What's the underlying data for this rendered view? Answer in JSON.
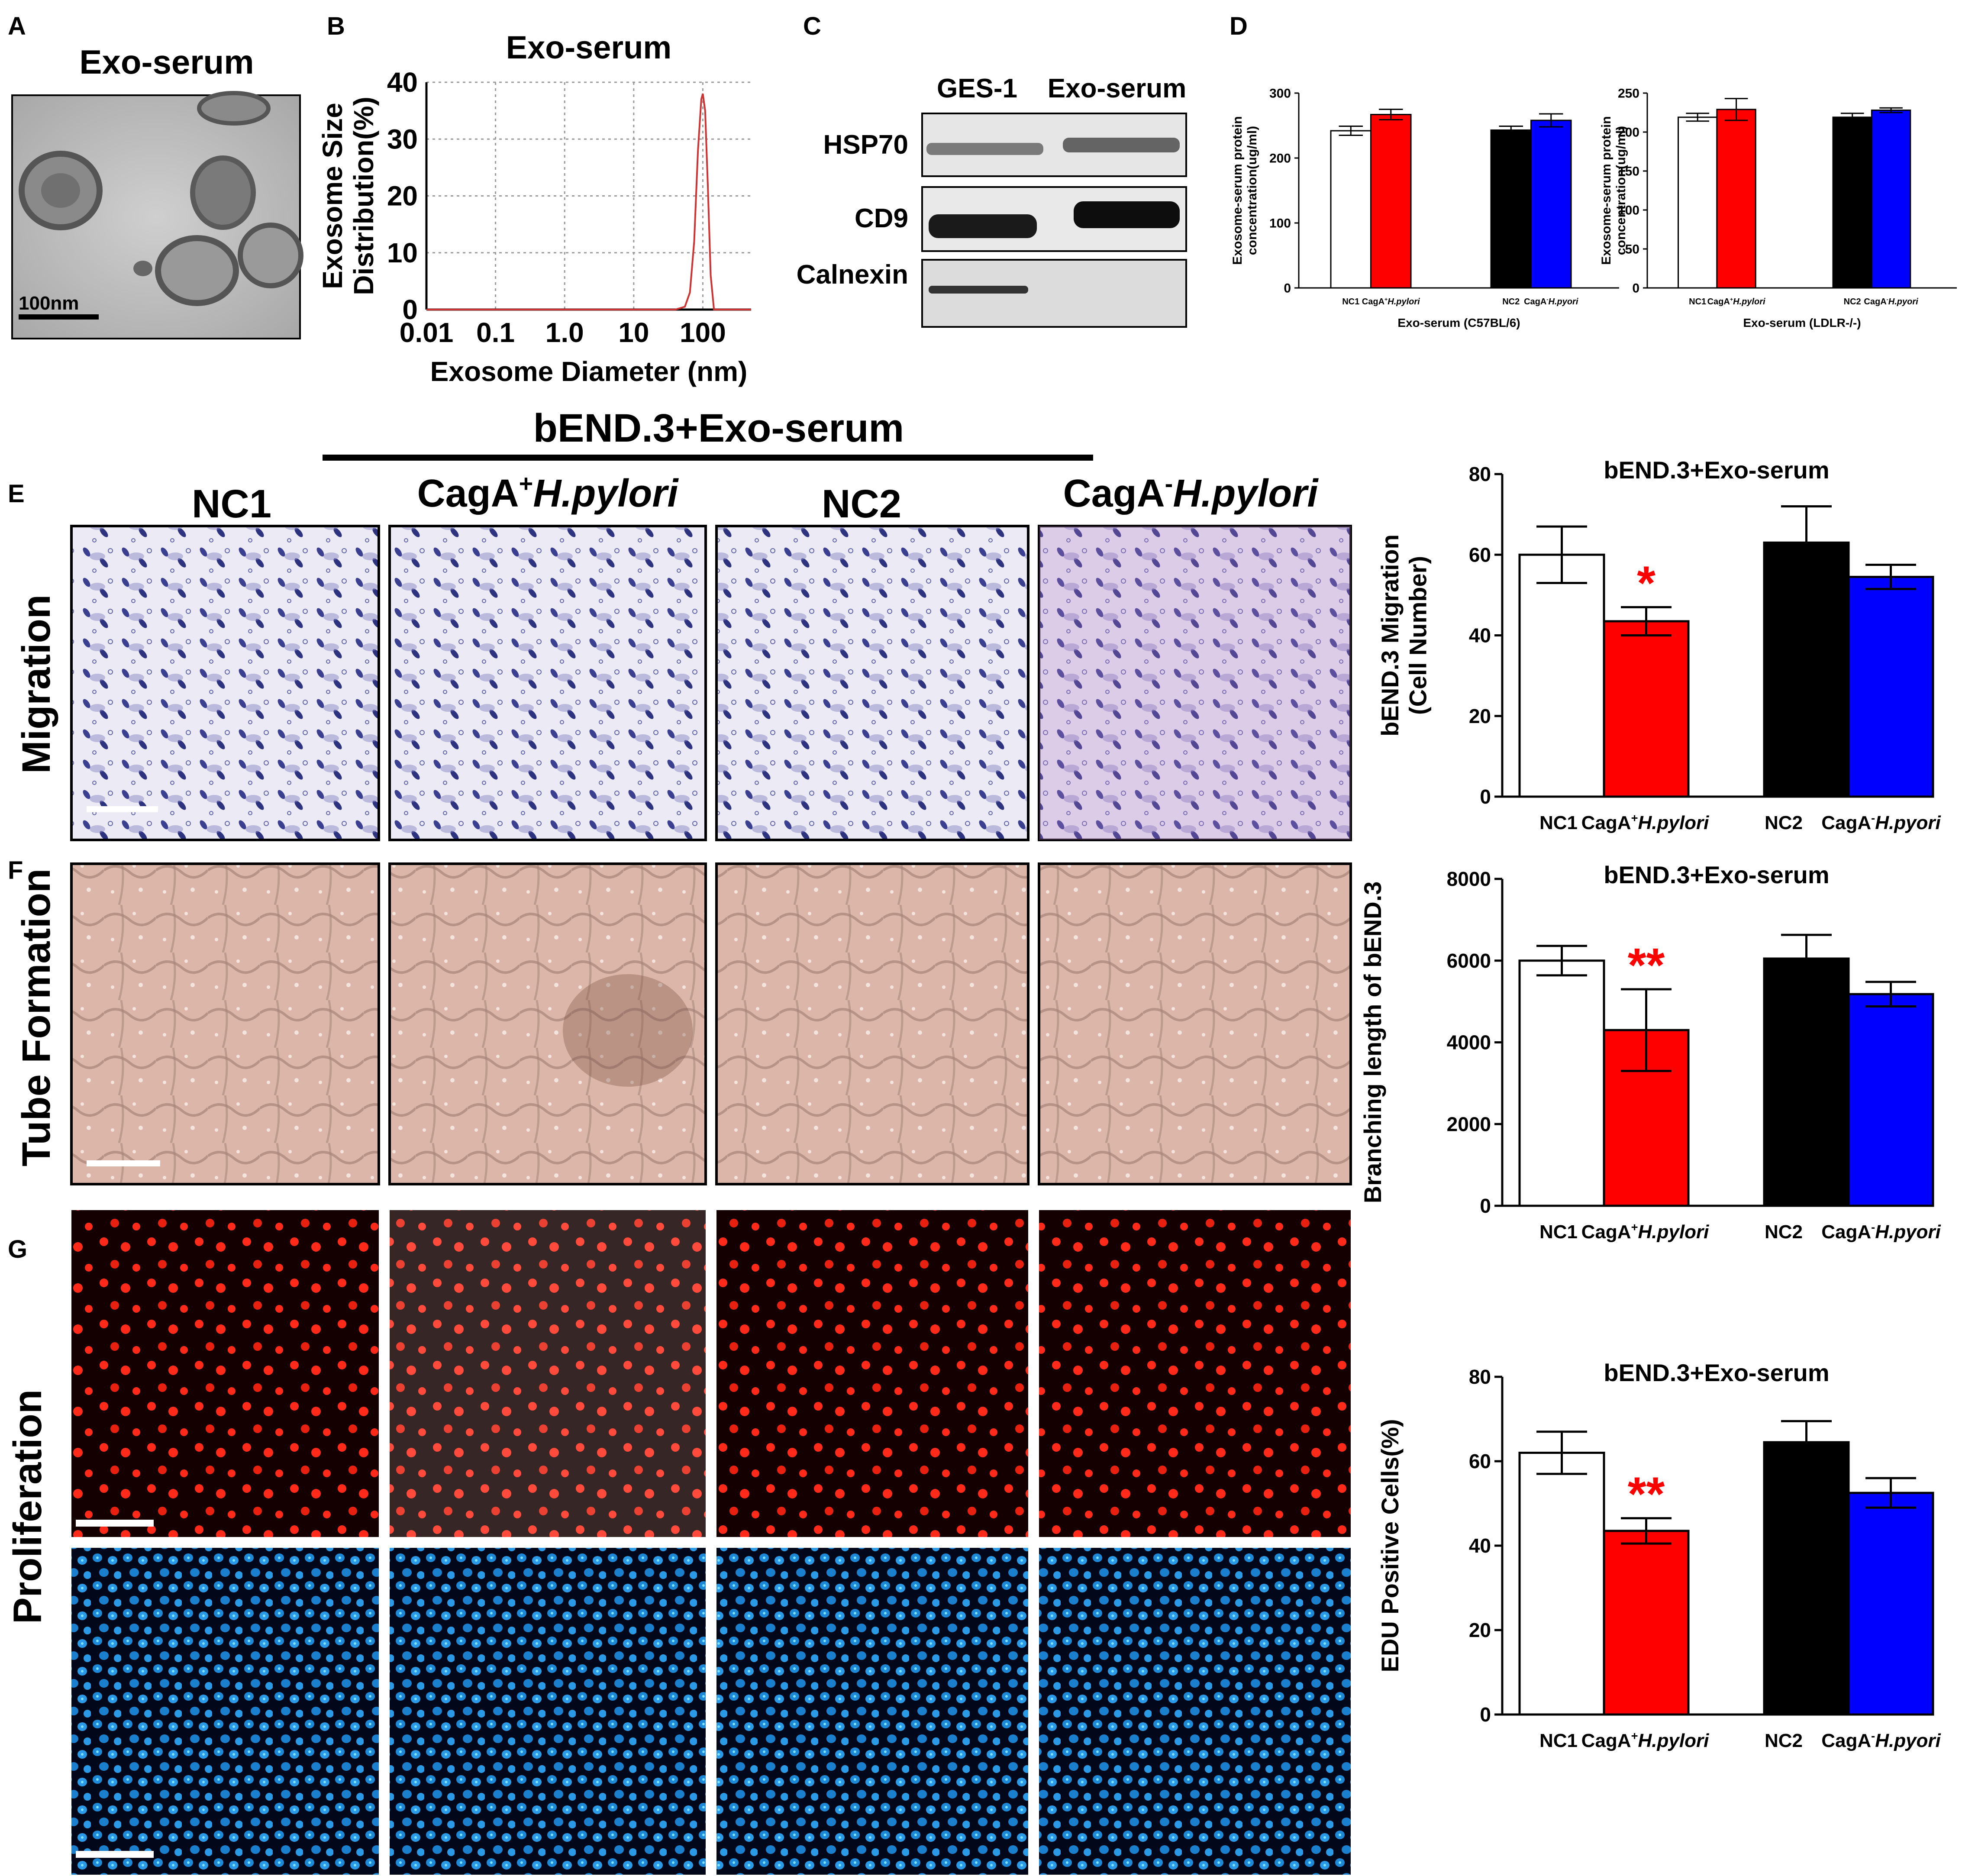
{
  "panel_letters": {
    "A": "A",
    "B": "B",
    "C": "C",
    "D": "D",
    "E": "E",
    "F": "F",
    "G": "G"
  },
  "panelA": {
    "title": "Exo-serum",
    "scalebar": "100nm"
  },
  "panelC": {
    "lanes": [
      "GES-1",
      "Exo-serum"
    ],
    "bands": [
      "HSP70",
      "CD9",
      "Calnexin"
    ]
  },
  "panelD": {
    "ylabel_line1": "Exosome-serum protein",
    "ylabel_line2": "concentration(ug/ml)"
  },
  "header": {
    "title": "bEND.3+Exo-serum"
  },
  "columns": [
    {
      "pre": "NC1",
      "sup": "",
      "post": ""
    },
    {
      "pre": "CagA",
      "sup": "+",
      "post": "H.pylori"
    },
    {
      "pre": "NC2",
      "sup": "",
      "post": ""
    },
    {
      "pre": "CagA",
      "sup": "-",
      "post": "H.pylori"
    }
  ],
  "rows": {
    "migration": "Migration",
    "tube": "Tube Formation",
    "proliferation": "Proliferation"
  },
  "colors": {
    "nc1": "#ffffff",
    "cagA_pos": "#ff0000",
    "nc2": "#000000",
    "cagA_neg": "#0000ff",
    "significance": "#ff0000",
    "fit_curve": "#cc3333"
  },
  "chart_data": [
    {
      "id": "B",
      "type": "line",
      "title": "Exo-serum",
      "xlabel": "Exosome Diameter (nm)",
      "ylabel": "Exosome Size Distribution(%)",
      "ylabel_lines": [
        "Exosome Size",
        "Distribution(%)"
      ],
      "xscale": "log",
      "xlim": [
        0.01,
        500
      ],
      "ylim": [
        0,
        40
      ],
      "xticks": [
        0.01,
        0.1,
        1,
        10,
        100
      ],
      "xtick_labels": [
        "0.01",
        "0.1",
        "1.0",
        "10",
        "100"
      ],
      "yticks": [
        0,
        10,
        20,
        30,
        40
      ],
      "grid": true,
      "x": [
        0.01,
        40,
        55,
        65,
        75,
        85,
        95,
        100,
        108,
        118,
        130,
        145,
        500
      ],
      "y": [
        0,
        0,
        0.5,
        3,
        12,
        28,
        37,
        38,
        35,
        22,
        6,
        0,
        0
      ]
    },
    {
      "id": "D1",
      "type": "bar",
      "xlabel": "Exo-serum (C57BL/6)",
      "categories": [
        "NC1",
        "CagA+H.pylori",
        "NC2",
        "CagA-H.pyori"
      ],
      "values": [
        242,
        267,
        243,
        258
      ],
      "errors": [
        7,
        8,
        6,
        10
      ],
      "ylim": [
        0,
        300
      ],
      "yticks": [
        0,
        100,
        200,
        300
      ]
    },
    {
      "id": "D2",
      "type": "bar",
      "xlabel": "Exo-serum (LDLR-/-)",
      "categories": [
        "NC1",
        "CagA+H.pylori",
        "NC2",
        "CagA-H.pyori"
      ],
      "values": [
        219,
        229,
        219,
        228
      ],
      "errors": [
        5,
        14,
        5,
        3
      ],
      "ylim": [
        0,
        250
      ],
      "yticks": [
        0,
        50,
        100,
        150,
        200,
        250
      ]
    },
    {
      "id": "E",
      "type": "bar",
      "title": "bEND.3+Exo-serum",
      "ylabel": "bEND.3 Migration (Cell Number)",
      "ylabel_lines": [
        "bEND.3 Migration",
        "(Cell Number)"
      ],
      "categories": [
        "NC1",
        "CagA+H.pylori",
        "NC2",
        "CagA-H.pyori"
      ],
      "values": [
        60,
        43.5,
        63,
        54.5
      ],
      "errors": [
        7,
        3.5,
        9,
        3
      ],
      "significance": [
        "",
        "*",
        "",
        ""
      ],
      "ylim": [
        0,
        80
      ],
      "yticks": [
        0,
        20,
        40,
        60,
        80
      ]
    },
    {
      "id": "F",
      "type": "bar",
      "title": "bEND.3+Exo-serum",
      "ylabel": "Branching length of bEND.3",
      "ylabel_lines": [
        "Branching length of bEND.3"
      ],
      "categories": [
        "NC1",
        "CagA+H.pylori",
        "NC2",
        "CagA-H.pyori"
      ],
      "values": [
        6000,
        4300,
        6050,
        5180
      ],
      "errors": [
        360,
        1000,
        580,
        300
      ],
      "significance": [
        "",
        "**",
        "",
        ""
      ],
      "ylim": [
        0,
        8000
      ],
      "yticks": [
        0,
        2000,
        4000,
        6000,
        8000
      ]
    },
    {
      "id": "G",
      "type": "bar",
      "title": "bEND.3+Exo-serum",
      "ylabel": "EDU Positive Cells(%)",
      "ylabel_lines": [
        "EDU Positive Cells(%)"
      ],
      "categories": [
        "NC1",
        "CagA+H.pylori",
        "NC2",
        "CagA-H.pyori"
      ],
      "values": [
        62,
        43.5,
        64.5,
        52.5
      ],
      "errors": [
        5,
        3,
        5,
        3.5
      ],
      "significance": [
        "",
        "**",
        "",
        ""
      ],
      "ylim": [
        0,
        80
      ],
      "yticks": [
        0,
        20,
        40,
        60,
        80
      ]
    }
  ]
}
